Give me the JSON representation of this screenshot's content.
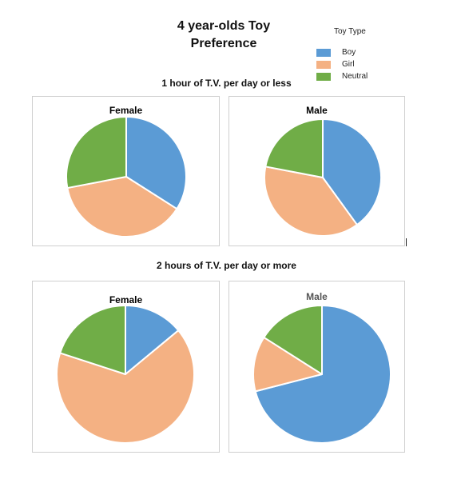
{
  "title_line1": "4 year-olds Toy",
  "title_line2": "Preference",
  "legend": {
    "title": "Toy Type",
    "items": [
      {
        "label": "Boy",
        "color": "#5b9bd5"
      },
      {
        "label": "Girl",
        "color": "#f4b183"
      },
      {
        "label": "Neutral",
        "color": "#70ad47"
      }
    ]
  },
  "sections": [
    {
      "title": "1 hour of T.V. per day or less"
    },
    {
      "title": "2 hours of T.V. per day or more"
    }
  ],
  "chart_data": [
    {
      "type": "pie",
      "group": "1 hour of T.V. per day or less",
      "title": "Female",
      "categories": [
        "Boy",
        "Girl",
        "Neutral"
      ],
      "values": [
        34,
        38,
        28
      ],
      "colors": [
        "#5b9bd5",
        "#f4b183",
        "#70ad47"
      ]
    },
    {
      "type": "pie",
      "group": "1 hour of T.V. per day or less",
      "title": "Male",
      "categories": [
        "Boy",
        "Girl",
        "Neutral"
      ],
      "values": [
        40,
        38,
        22
      ],
      "colors": [
        "#5b9bd5",
        "#f4b183",
        "#70ad47"
      ]
    },
    {
      "type": "pie",
      "group": "2 hours of T.V. per day or more",
      "title": "Female",
      "categories": [
        "Boy",
        "Girl",
        "Neutral"
      ],
      "values": [
        14,
        66,
        20
      ],
      "colors": [
        "#5b9bd5",
        "#f4b183",
        "#70ad47"
      ]
    },
    {
      "type": "pie",
      "group": "2 hours of T.V. per day or more",
      "title": "Male",
      "categories": [
        "Boy",
        "Girl",
        "Neutral"
      ],
      "values": [
        71,
        13,
        16
      ],
      "colors": [
        "#5b9bd5",
        "#f4b183",
        "#70ad47"
      ]
    }
  ]
}
